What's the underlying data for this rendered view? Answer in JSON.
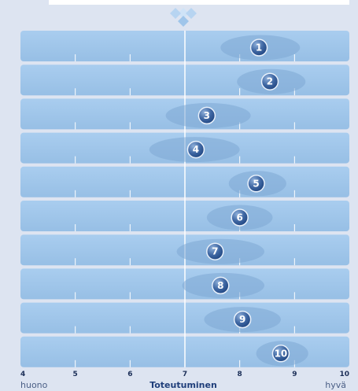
{
  "colors": {
    "background": "#dde4f1",
    "row": "#9cc3e7",
    "row_highlight": "#a9cdef",
    "tick": "#ffffff",
    "range_ellipse": "#7ea7d3",
    "badge_dark": "#1f4580",
    "badge_light": "#6c93c6",
    "logo_light": "#cfe3f7",
    "logo_dark": "#7fb0e0"
  },
  "icons": {
    "logo": "diamond-cluster-icon"
  },
  "chart_data": {
    "type": "scatter",
    "title": "",
    "xlabel": "Toteutuminen",
    "x_min_label": "huono",
    "x_max_label": "hyvä",
    "xlim": [
      4,
      10
    ],
    "xticks": [
      "4",
      "5",
      "6",
      "7",
      "8",
      "9",
      "10"
    ],
    "reference_line": 7,
    "grid": false,
    "legend": "none",
    "items": [
      {
        "label": "1",
        "value": 8.35,
        "range": [
          7.65,
          9.1
        ]
      },
      {
        "label": "2",
        "value": 8.55,
        "range": [
          7.95,
          9.2
        ]
      },
      {
        "label": "3",
        "value": 7.4,
        "range": [
          6.65,
          8.2
        ]
      },
      {
        "label": "4",
        "value": 7.2,
        "range": [
          6.35,
          8.0
        ]
      },
      {
        "label": "5",
        "value": 8.3,
        "range": [
          7.8,
          8.85
        ]
      },
      {
        "label": "6",
        "value": 8.0,
        "range": [
          7.4,
          8.6
        ]
      },
      {
        "label": "7",
        "value": 7.55,
        "range": [
          6.85,
          8.45
        ]
      },
      {
        "label": "8",
        "value": 7.65,
        "range": [
          6.95,
          8.45
        ]
      },
      {
        "label": "9",
        "value": 8.05,
        "range": [
          7.35,
          8.75
        ]
      },
      {
        "label": "10",
        "value": 8.75,
        "range": [
          8.3,
          9.25
        ]
      }
    ]
  }
}
